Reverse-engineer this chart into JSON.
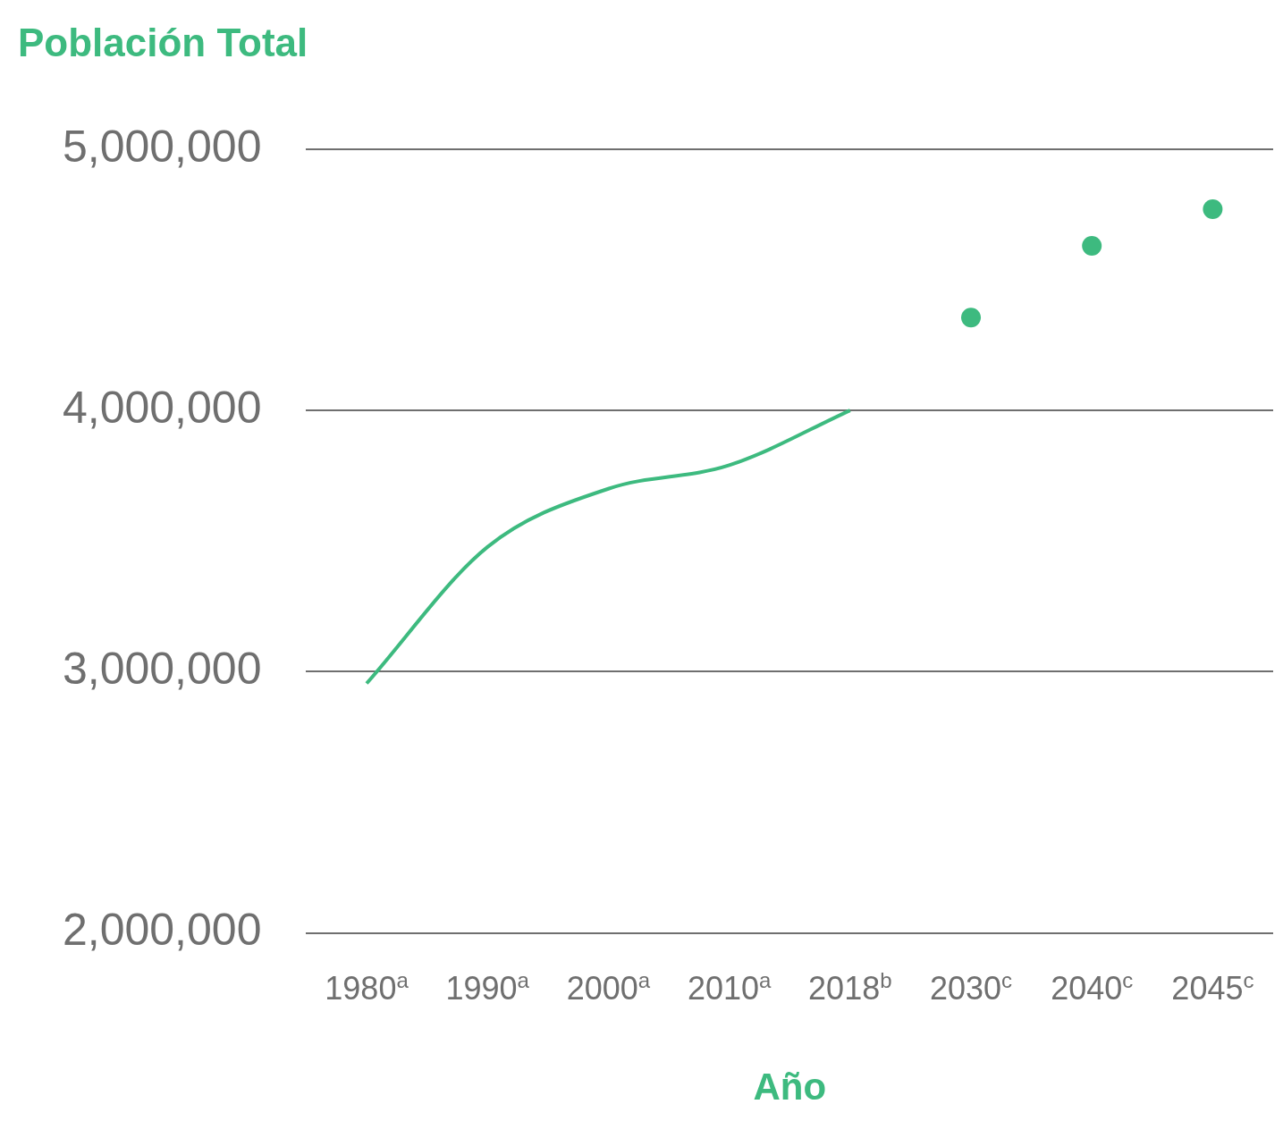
{
  "chart_data": {
    "type": "line",
    "title": "Población Total",
    "xlabel": "Año",
    "categories": [
      "1980$^{a}$",
      "1990$^{a}$",
      "2000$^{a}$",
      "2010$^{a}$",
      "2018$^{b}$",
      "2030$^{c}$",
      "2040$^{c}$",
      "2045$^{c}$"
    ],
    "series": [
      {
        "color": "#3dba7f",
        "values": [
          2955000,
          3477000,
          3700000,
          3790000,
          4000000,
          null,
          null,
          null
        ]
      },
      {
        "type": "scatter",
        "color": "#3dba7f",
        "values": [
          null,
          null,
          null,
          null,
          null,
          4355000,
          4630000,
          4770000
        ]
      }
    ],
    "ylim": [
      2000000,
      5000000
    ],
    "yticks": [
      {
        "value": 2000000,
        "label": "2,000,000"
      },
      {
        "value": 3000000,
        "label": "3,000,000"
      },
      {
        "value": 4000000,
        "label": "4,000,000"
      },
      {
        "value": 5000000,
        "label": "5,000,000"
      }
    ],
    "grid": "y",
    "legend": false
  }
}
